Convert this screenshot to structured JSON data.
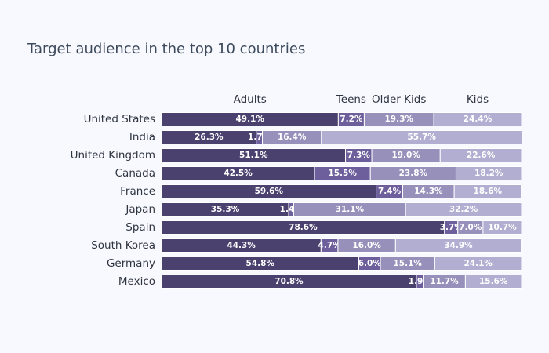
{
  "chart_data": {
    "type": "bar",
    "orientation": "horizontal",
    "stacked": "percent",
    "title": "Target audience in the top 10 countries",
    "categories": [
      "United States",
      "India",
      "United Kingdom",
      "Canada",
      "France",
      "Japan",
      "Spain",
      "South Korea",
      "Germany",
      "Mexico"
    ],
    "series": [
      {
        "name": "Adults",
        "color": "#4a416e",
        "values": [
          49.1,
          26.3,
          51.1,
          42.5,
          59.6,
          35.3,
          78.6,
          44.3,
          54.8,
          70.8
        ]
      },
      {
        "name": "Teens",
        "color": "#6c5f9b",
        "values": [
          7.2,
          1.7,
          7.3,
          15.5,
          7.4,
          1.4,
          3.7,
          4.7,
          6.0,
          1.9
        ]
      },
      {
        "name": "Older Kids",
        "color": "#9690ba",
        "values": [
          19.3,
          16.4,
          19.0,
          23.8,
          14.3,
          31.1,
          7.0,
          16.0,
          15.1,
          11.7
        ]
      },
      {
        "name": "Kids",
        "color": "#b2aed2",
        "values": [
          24.4,
          55.7,
          22.6,
          18.2,
          18.6,
          32.2,
          10.7,
          34.9,
          24.1,
          15.6
        ]
      }
    ],
    "value_suffix": "%",
    "legend_position": "top",
    "xlim": [
      0,
      100
    ],
    "grid": false
  }
}
